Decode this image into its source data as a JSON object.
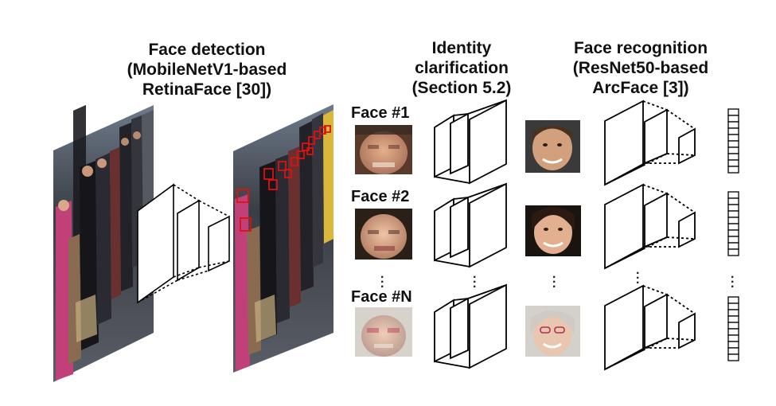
{
  "titles": {
    "face_detection": [
      "Face detection",
      "(MobileNetV1-based",
      "RetinaFace [30])"
    ],
    "identity_clarification": [
      "Identity",
      "clarification",
      "(Section 5.2)"
    ],
    "face_recognition": [
      "Face recognition",
      "(ResNet50-based",
      "ArcFace [3])"
    ]
  },
  "faces": [
    {
      "label": "Face #1"
    },
    {
      "label": "Face #2"
    },
    {
      "label": "Face #N"
    }
  ],
  "colors": {
    "detection_box": "#e01010",
    "line": "#000000",
    "skin": "#d9a07a",
    "street": "#4a4f58"
  }
}
